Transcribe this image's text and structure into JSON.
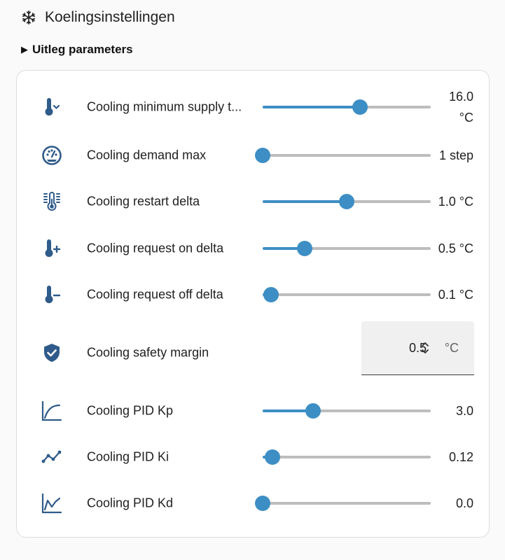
{
  "header": {
    "title": "Koelingsinstellingen",
    "icon": "snowflake-icon"
  },
  "details": {
    "label": "Uitleg parameters"
  },
  "colors": {
    "accent": "#3d8ec4",
    "icon": "#2f5b8a",
    "track": "#bdbdbd"
  },
  "settings": [
    {
      "label": "Cooling minimum supply t...",
      "value_line1": "16.0",
      "value_line2": "°C",
      "icon": "thermometer-chevron-down-icon",
      "level": 0.58
    },
    {
      "label": "Cooling demand max",
      "value": "1 step",
      "icon": "gauge-icon",
      "level": 0.0
    },
    {
      "label": "Cooling restart delta",
      "value": "1.0 °C",
      "icon": "thermometer-lines-icon",
      "level": 0.5
    },
    {
      "label": "Cooling request on delta",
      "value": "0.5 °C",
      "icon": "thermometer-plus-icon",
      "level": 0.25
    },
    {
      "label": "Cooling request off delta",
      "value": "0.1 °C",
      "icon": "thermometer-minus-icon",
      "level": 0.05
    },
    {
      "label": "Cooling safety margin",
      "value": "0.5",
      "unit": "°C",
      "icon": "shield-check-icon"
    },
    {
      "label": "Cooling PID Kp",
      "value": "3.0",
      "icon": "chart-curve-icon",
      "level": 0.3
    },
    {
      "label": "Cooling PID Ki",
      "value": "0.12",
      "icon": "chart-line-points-icon",
      "level": 0.06
    },
    {
      "label": "Cooling PID Kd",
      "value": "0.0",
      "icon": "chart-line-area-icon",
      "level": 0.0
    }
  ]
}
